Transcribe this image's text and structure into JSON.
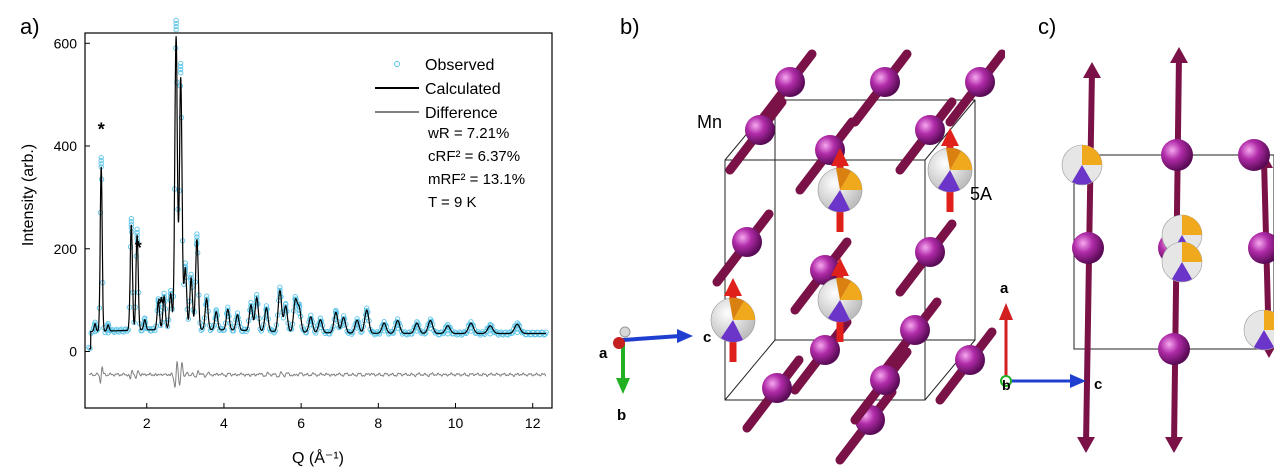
{
  "panels": {
    "a": "a)",
    "b": "b)",
    "c": "c)"
  },
  "chart_data": {
    "type": "line",
    "xlabel": "Q (Å⁻¹)",
    "ylabel": "Intensity (arb.)",
    "xlim": [
      0.4,
      12.5
    ],
    "ylim": [
      -110,
      620
    ],
    "xticks": [
      2,
      4,
      6,
      8,
      10,
      12
    ],
    "yticks": [
      0,
      200,
      400,
      600
    ],
    "legend": {
      "placement": "top-right",
      "entries": [
        "Observed",
        "Calculated",
        "Difference"
      ],
      "stats": [
        "wR = 7.21%",
        "cRF² = 6.37%",
        "mRF² = 13.1%",
        "T    = 9 K"
      ]
    },
    "colors": {
      "observed": "#5bc4e8",
      "calculated": "#000000",
      "difference": "#808080"
    },
    "peaks": [
      {
        "q": 0.66,
        "i": 15
      },
      {
        "q": 0.82,
        "i": 320
      },
      {
        "q": 1.0,
        "i": 12
      },
      {
        "q": 1.6,
        "i": 205
      },
      {
        "q": 1.75,
        "i": 185
      },
      {
        "q": 1.95,
        "i": 20
      },
      {
        "q": 2.3,
        "i": 55
      },
      {
        "q": 2.45,
        "i": 65
      },
      {
        "q": 2.62,
        "i": 70
      },
      {
        "q": 2.76,
        "i": 570
      },
      {
        "q": 2.88,
        "i": 490
      },
      {
        "q": 3.0,
        "i": 120
      },
      {
        "q": 3.15,
        "i": 100
      },
      {
        "q": 3.3,
        "i": 175
      },
      {
        "q": 3.55,
        "i": 60
      },
      {
        "q": 3.8,
        "i": 35
      },
      {
        "q": 4.1,
        "i": 40
      },
      {
        "q": 4.35,
        "i": 30
      },
      {
        "q": 4.7,
        "i": 50
      },
      {
        "q": 4.85,
        "i": 65
      },
      {
        "q": 5.1,
        "i": 45
      },
      {
        "q": 5.45,
        "i": 80
      },
      {
        "q": 5.6,
        "i": 50
      },
      {
        "q": 5.85,
        "i": 60
      },
      {
        "q": 5.95,
        "i": 45
      },
      {
        "q": 6.25,
        "i": 30
      },
      {
        "q": 6.5,
        "i": 25
      },
      {
        "q": 6.9,
        "i": 40
      },
      {
        "q": 7.1,
        "i": 30
      },
      {
        "q": 7.45,
        "i": 25
      },
      {
        "q": 7.7,
        "i": 45
      },
      {
        "q": 8.15,
        "i": 20
      },
      {
        "q": 8.5,
        "i": 25
      },
      {
        "q": 9.0,
        "i": 20
      },
      {
        "q": 9.35,
        "i": 25
      },
      {
        "q": 9.8,
        "i": 15
      },
      {
        "q": 10.4,
        "i": 20
      },
      {
        "q": 10.9,
        "i": 15
      },
      {
        "q": 11.6,
        "i": 18
      }
    ],
    "star_markers": [
      0.82,
      1.78,
      2.38
    ],
    "star_label": "*"
  },
  "panel_b": {
    "atom_label": "Mn",
    "site_label": "5A",
    "axes": {
      "a": "a",
      "b": "b",
      "c": "c"
    }
  },
  "panel_c": {
    "axes": {
      "a": "a",
      "b": "b",
      "c": "c"
    }
  }
}
